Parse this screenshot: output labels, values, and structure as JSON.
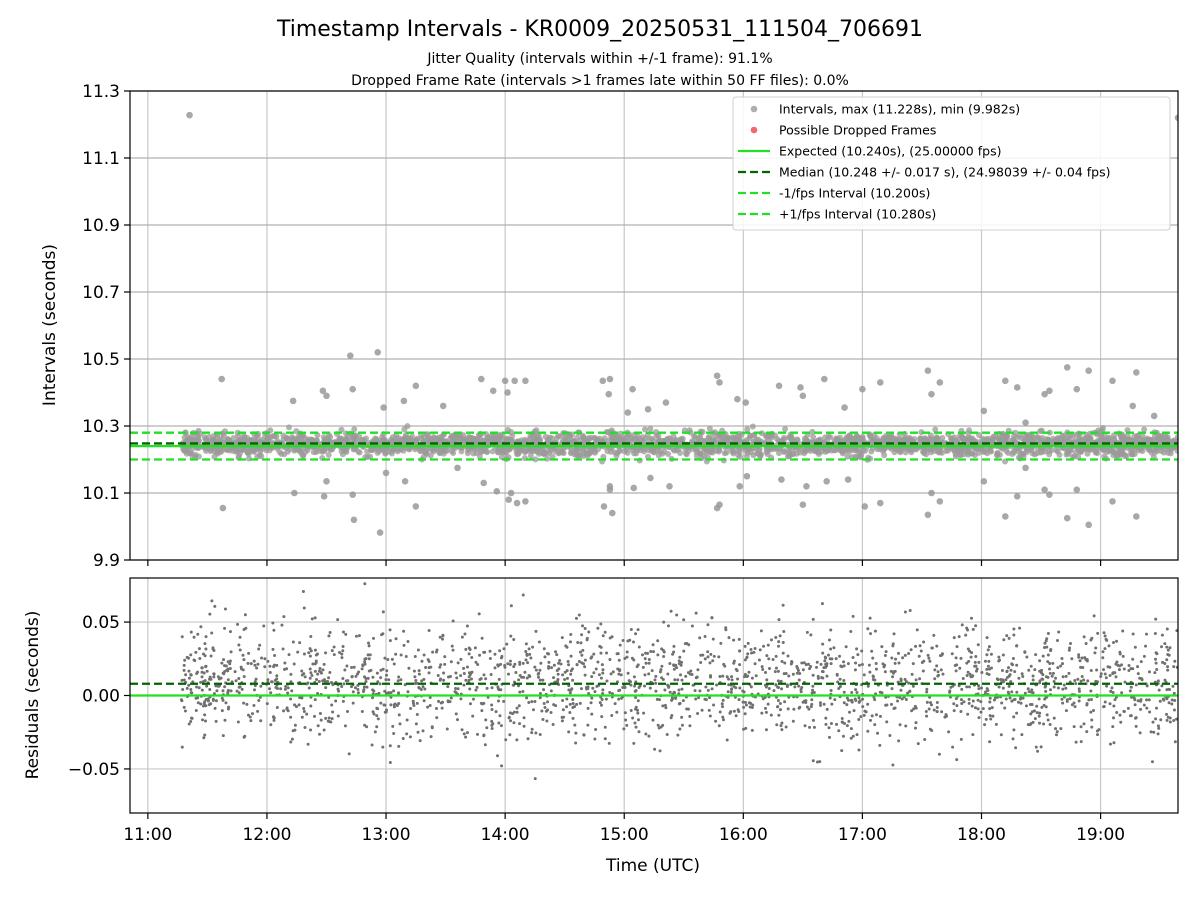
{
  "chart_data": [
    {
      "type": "scatter",
      "panel": "intervals",
      "title": "Timestamp Intervals - KR0009_20250531_111504_706691",
      "subtitle_lines": [
        "Jitter Quality (intervals within +/-1 frame): 91.1%",
        "Dropped Frame Rate (intervals >1 frames late within 50 FF files): 0.0%"
      ],
      "ylabel": "Intervals (seconds)",
      "ylim": [
        9.9,
        11.3
      ],
      "yticks": [
        9.9,
        10.1,
        10.3,
        10.5,
        10.7,
        10.9,
        11.1,
        11.3
      ],
      "ytick_labels": [
        "9.9",
        "10.1",
        "10.3",
        "10.5",
        "10.7",
        "10.9",
        "11.1",
        "11.3"
      ],
      "grid": true,
      "legend_position": "top-right",
      "legend": [
        {
          "label": "Intervals, max (11.228s), min (9.982s)",
          "marker": "circle",
          "color": "#a0a0a0"
        },
        {
          "label": "Possible Dropped Frames",
          "marker": "circle",
          "color": "#f05050"
        },
        {
          "label": "Expected (10.240s), (25.00000 fps)",
          "line": "solid",
          "color": "#22e022"
        },
        {
          "label": "Median (10.248 +/- 0.017 s), (24.98039 +/- 0.04 fps)",
          "line": "dashed",
          "color": "#006400"
        },
        {
          "label": "-1/fps Interval (10.200s)",
          "line": "dashed",
          "color": "#22e022"
        },
        {
          "label": "+1/fps Interval (10.280s)",
          "line": "dashed",
          "color": "#22e022"
        }
      ],
      "reference_lines": [
        {
          "name": "Expected",
          "y": 10.24,
          "style": "solid",
          "color": "#22e022"
        },
        {
          "name": "Median",
          "y": 10.248,
          "style": "dashed",
          "color": "#006400"
        },
        {
          "name": "-1/fps Interval",
          "y": 10.2,
          "style": "dashed",
          "color": "#22e022"
        },
        {
          "name": "+1/fps Interval",
          "y": 10.28,
          "style": "dashed",
          "color": "#22e022"
        }
      ],
      "series": [
        {
          "name": "Intervals, max (11.228s), min (9.982s)",
          "color": "#909090",
          "note_x_units": "hours UTC",
          "x_range": [
            11.28,
            19.65
          ],
          "typical_band": [
            10.2,
            10.29
          ],
          "outliers": [
            {
              "x": 11.35,
              "y": 11.228
            },
            {
              "x": 11.62,
              "y": 10.44
            },
            {
              "x": 11.63,
              "y": 10.055
            },
            {
              "x": 12.22,
              "y": 10.375
            },
            {
              "x": 12.23,
              "y": 10.1
            },
            {
              "x": 12.47,
              "y": 10.405
            },
            {
              "x": 12.48,
              "y": 10.09
            },
            {
              "x": 12.5,
              "y": 10.39
            },
            {
              "x": 12.5,
              "y": 10.135
            },
            {
              "x": 12.7,
              "y": 10.51
            },
            {
              "x": 12.72,
              "y": 10.41
            },
            {
              "x": 12.72,
              "y": 10.095
            },
            {
              "x": 12.73,
              "y": 10.02
            },
            {
              "x": 12.93,
              "y": 10.52
            },
            {
              "x": 12.95,
              "y": 9.982
            },
            {
              "x": 12.98,
              "y": 10.355
            },
            {
              "x": 13.0,
              "y": 10.16
            },
            {
              "x": 13.15,
              "y": 10.375
            },
            {
              "x": 13.16,
              "y": 10.135
            },
            {
              "x": 13.25,
              "y": 10.42
            },
            {
              "x": 13.25,
              "y": 10.06
            },
            {
              "x": 13.48,
              "y": 10.36
            },
            {
              "x": 13.6,
              "y": 10.175
            },
            {
              "x": 13.8,
              "y": 10.44
            },
            {
              "x": 13.82,
              "y": 10.13
            },
            {
              "x": 13.9,
              "y": 10.405
            },
            {
              "x": 13.93,
              "y": 10.105
            },
            {
              "x": 14.02,
              "y": 10.4
            },
            {
              "x": 14.05,
              "y": 10.1
            },
            {
              "x": 14.0,
              "y": 10.435
            },
            {
              "x": 14.03,
              "y": 10.08
            },
            {
              "x": 14.08,
              "y": 10.435
            },
            {
              "x": 14.1,
              "y": 10.07
            },
            {
              "x": 14.17,
              "y": 10.435
            },
            {
              "x": 14.17,
              "y": 10.075
            },
            {
              "x": 14.82,
              "y": 10.435
            },
            {
              "x": 14.83,
              "y": 10.06
            },
            {
              "x": 14.88,
              "y": 10.44
            },
            {
              "x": 14.9,
              "y": 10.04
            },
            {
              "x": 14.87,
              "y": 10.395
            },
            {
              "x": 14.88,
              "y": 10.12
            },
            {
              "x": 14.88,
              "y": 10.11
            },
            {
              "x": 15.03,
              "y": 10.34
            },
            {
              "x": 15.07,
              "y": 10.41
            },
            {
              "x": 15.08,
              "y": 10.115
            },
            {
              "x": 15.2,
              "y": 10.35
            },
            {
              "x": 15.22,
              "y": 10.145
            },
            {
              "x": 15.35,
              "y": 10.37
            },
            {
              "x": 15.38,
              "y": 10.12
            },
            {
              "x": 15.78,
              "y": 10.45
            },
            {
              "x": 15.78,
              "y": 10.055
            },
            {
              "x": 15.8,
              "y": 10.43
            },
            {
              "x": 15.8,
              "y": 10.065
            },
            {
              "x": 15.95,
              "y": 10.38
            },
            {
              "x": 15.97,
              "y": 10.12
            },
            {
              "x": 16.02,
              "y": 10.37
            },
            {
              "x": 16.03,
              "y": 10.15
            },
            {
              "x": 16.3,
              "y": 10.42
            },
            {
              "x": 16.32,
              "y": 10.14
            },
            {
              "x": 16.48,
              "y": 10.415
            },
            {
              "x": 16.5,
              "y": 10.065
            },
            {
              "x": 16.5,
              "y": 10.39
            },
            {
              "x": 16.53,
              "y": 10.12
            },
            {
              "x": 16.68,
              "y": 10.44
            },
            {
              "x": 16.7,
              "y": 10.135
            },
            {
              "x": 16.85,
              "y": 10.355
            },
            {
              "x": 16.88,
              "y": 10.14
            },
            {
              "x": 17.0,
              "y": 10.41
            },
            {
              "x": 17.02,
              "y": 10.06
            },
            {
              "x": 17.15,
              "y": 10.43
            },
            {
              "x": 17.15,
              "y": 10.07
            },
            {
              "x": 17.55,
              "y": 10.465
            },
            {
              "x": 17.58,
              "y": 10.395
            },
            {
              "x": 17.58,
              "y": 10.1
            },
            {
              "x": 17.55,
              "y": 10.035
            },
            {
              "x": 17.65,
              "y": 10.43
            },
            {
              "x": 17.65,
              "y": 10.075
            },
            {
              "x": 18.02,
              "y": 10.345
            },
            {
              "x": 18.02,
              "y": 10.135
            },
            {
              "x": 18.2,
              "y": 10.435
            },
            {
              "x": 18.2,
              "y": 10.03
            },
            {
              "x": 18.3,
              "y": 10.415
            },
            {
              "x": 18.3,
              "y": 10.09
            },
            {
              "x": 18.37,
              "y": 10.31
            },
            {
              "x": 18.37,
              "y": 10.175
            },
            {
              "x": 18.53,
              "y": 10.395
            },
            {
              "x": 18.53,
              "y": 10.11
            },
            {
              "x": 18.57,
              "y": 10.405
            },
            {
              "x": 18.57,
              "y": 10.095
            },
            {
              "x": 18.72,
              "y": 10.475
            },
            {
              "x": 18.72,
              "y": 10.025
            },
            {
              "x": 18.8,
              "y": 10.41
            },
            {
              "x": 18.8,
              "y": 10.11
            },
            {
              "x": 18.9,
              "y": 10.465
            },
            {
              "x": 18.9,
              "y": 10.005
            },
            {
              "x": 19.1,
              "y": 10.435
            },
            {
              "x": 19.1,
              "y": 10.075
            },
            {
              "x": 19.27,
              "y": 10.36
            },
            {
              "x": 19.3,
              "y": 10.46
            },
            {
              "x": 19.3,
              "y": 10.03
            },
            {
              "x": 19.45,
              "y": 10.33
            },
            {
              "x": 19.65,
              "y": 11.22
            }
          ]
        }
      ]
    },
    {
      "type": "scatter",
      "panel": "residuals",
      "xlabel": "Time (UTC)",
      "ylabel": "Residuals (seconds)",
      "x_tick_labels": [
        "11:00",
        "12:00",
        "13:00",
        "14:00",
        "15:00",
        "16:00",
        "17:00",
        "18:00",
        "19:00"
      ],
      "x_ticks_hours": [
        11,
        12,
        13,
        14,
        15,
        16,
        17,
        18,
        19
      ],
      "xlim_hours": [
        10.85,
        19.65
      ],
      "ylim": [
        -0.08,
        0.08
      ],
      "yticks": [
        -0.05,
        0.0,
        0.05
      ],
      "ytick_labels": [
        "−0.05",
        "0.00",
        "0.05"
      ],
      "grid": true,
      "reference_lines": [
        {
          "name": "Expected",
          "y": 0.0,
          "style": "solid",
          "color": "#22e022"
        },
        {
          "name": "Median",
          "y": 0.008,
          "style": "dashed",
          "color": "#006400"
        }
      ],
      "series": [
        {
          "name": "Residuals",
          "color": "#707070",
          "x_range": [
            11.28,
            19.65
          ],
          "typical_band": [
            -0.03,
            0.05
          ],
          "center": 0.008
        }
      ]
    }
  ]
}
